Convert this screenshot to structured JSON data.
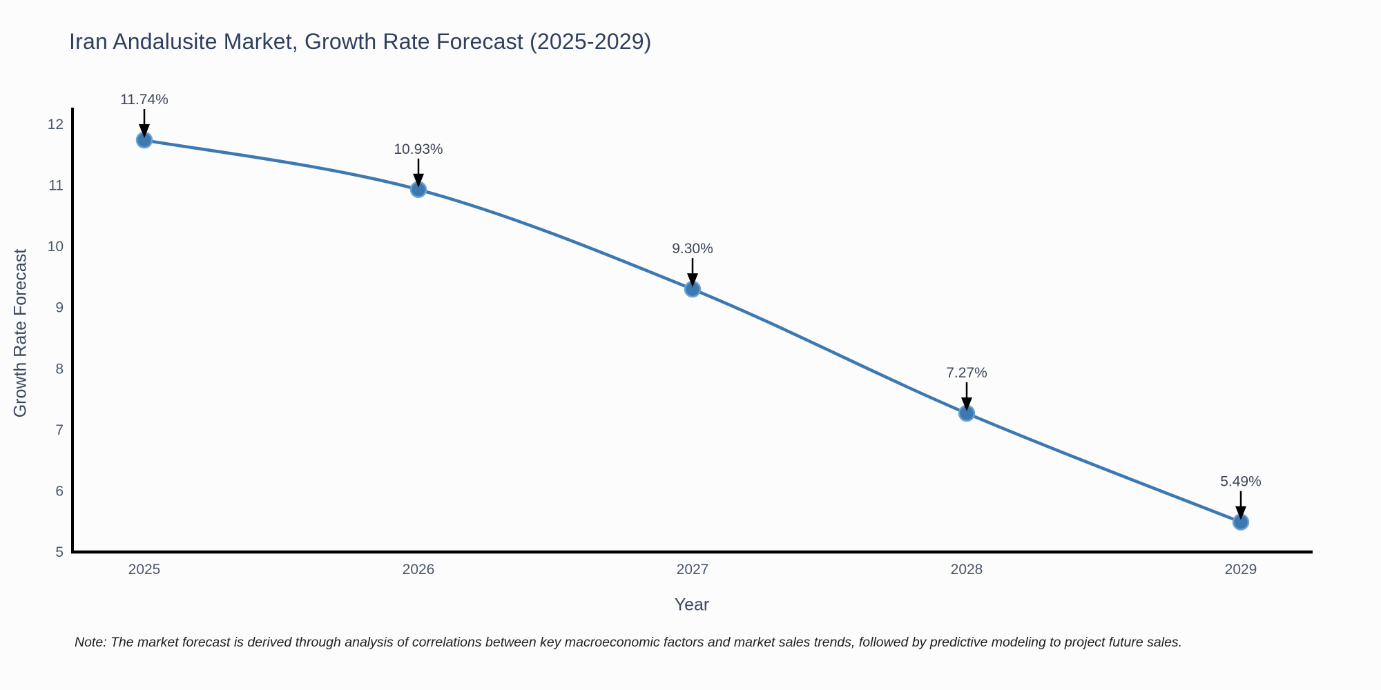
{
  "note": "Note: The market forecast is derived through analysis of correlations between key macroeconomic factors and market sales trends, followed by predictive modeling to project future sales.",
  "chart_data": {
    "type": "line",
    "title": "Iran Andalusite Market, Growth Rate Forecast (2025-2029)",
    "xlabel": "Year",
    "ylabel": "Growth Rate Forecast",
    "categories": [
      "2025",
      "2026",
      "2027",
      "2028",
      "2029"
    ],
    "series": [
      {
        "name": "Growth Rate Forecast",
        "values": [
          11.74,
          10.93,
          9.3,
          7.27,
          5.49
        ]
      }
    ],
    "point_labels": [
      "11.74%",
      "10.93%",
      "9.30%",
      "7.27%",
      "5.49%"
    ],
    "y_ticks": [
      5,
      6,
      7,
      8,
      9,
      10,
      11,
      12
    ],
    "ylim": [
      5,
      12
    ],
    "grid": false,
    "legend": false,
    "line_shape": "spline",
    "annotation_style": "down-arrow",
    "colors": {
      "line": "#3c79b1",
      "marker": "#3c79b1",
      "marker_rim": "#6ea2cd",
      "axis": "#000000",
      "arrow": "#000000",
      "title_text": "#2e3f5e",
      "tick_text": "#4a5568",
      "annotation_text": "#3d4656"
    }
  }
}
